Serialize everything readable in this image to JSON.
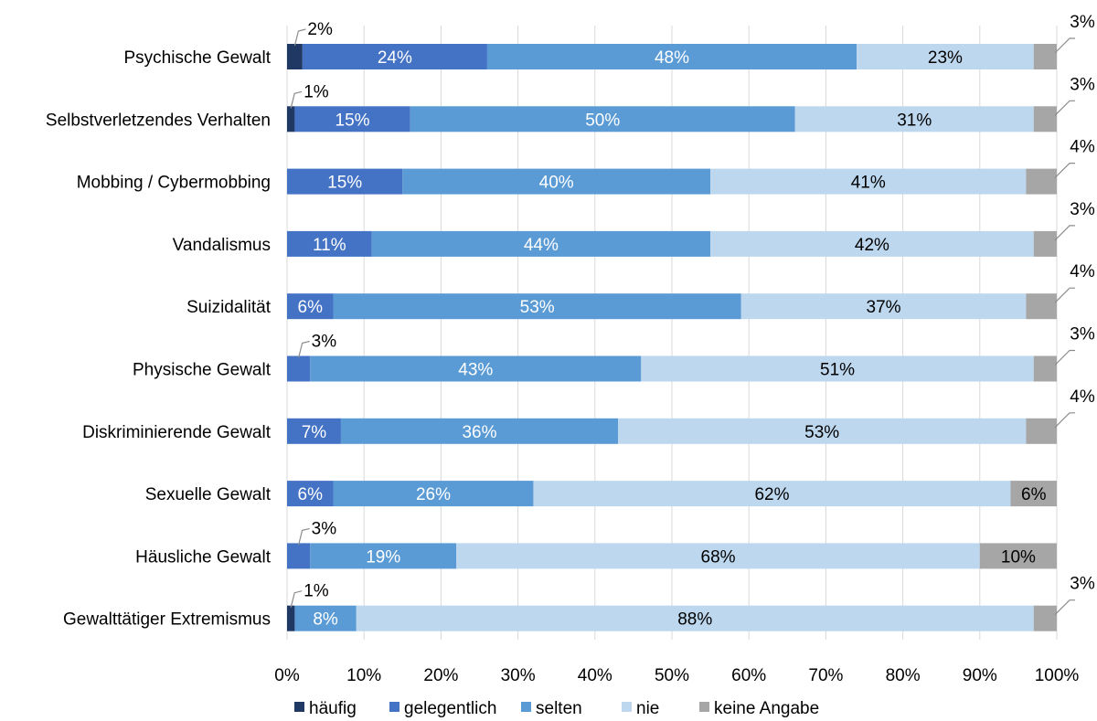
{
  "chart_data": {
    "type": "bar",
    "orientation": "horizontal",
    "stacked": true,
    "xlim": [
      0,
      100
    ],
    "x_ticks": [
      "0%",
      "10%",
      "20%",
      "30%",
      "40%",
      "50%",
      "60%",
      "70%",
      "80%",
      "90%",
      "100%"
    ],
    "grid": true,
    "legend_position": "bottom",
    "categories": [
      "Psychische Gewalt",
      "Selbstverletzendes Verhalten",
      "Mobbing / Cybermobbing",
      "Vandalismus",
      "Suizidalität",
      "Physische Gewalt",
      "Diskriminierende Gewalt",
      "Sexuelle Gewalt",
      "Häusliche Gewalt",
      "Gewalttätiger Extremismus"
    ],
    "series": [
      {
        "name": "häufig",
        "color": "#1f3864",
        "values": [
          2,
          1,
          0,
          0,
          0,
          0,
          0,
          0,
          0,
          1
        ]
      },
      {
        "name": "gelegentlich",
        "color": "#4472c4",
        "values": [
          24,
          15,
          15,
          11,
          6,
          3,
          7,
          6,
          3,
          0
        ]
      },
      {
        "name": "selten",
        "color": "#5b9bd5",
        "values": [
          48,
          50,
          40,
          44,
          53,
          43,
          36,
          26,
          19,
          8
        ]
      },
      {
        "name": "nie",
        "color": "#bdd7ee",
        "values": [
          23,
          31,
          41,
          42,
          37,
          51,
          53,
          62,
          68,
          88
        ]
      },
      {
        "name": "keine Angabe",
        "color": "#a6a6a6",
        "values": [
          3,
          3,
          4,
          3,
          4,
          3,
          4,
          6,
          10,
          3
        ]
      }
    ],
    "value_suffix": "%"
  }
}
